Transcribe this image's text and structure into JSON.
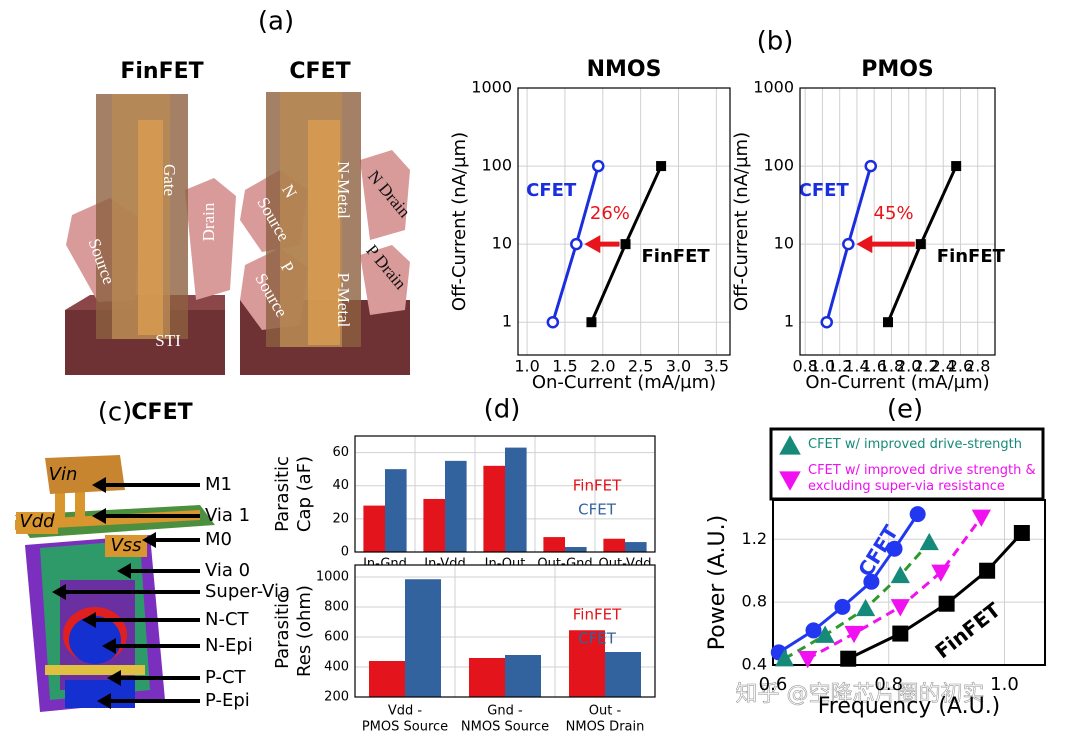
{
  "panel_labels": [
    "(a)",
    "(b)",
    "(c)",
    "(d)",
    "(e)"
  ],
  "device": {
    "finfet": {
      "title": "FinFET",
      "labels": [
        "Gate",
        "Drain",
        "Source",
        "STI"
      ]
    },
    "cfet": {
      "title": "CFET",
      "labels": [
        "N",
        "Source",
        "N-Metal",
        "N Drain",
        "P",
        "Source",
        "P-Metal",
        "P Drain"
      ]
    }
  },
  "layout": {
    "title": "CFET",
    "pins": [
      "Vin",
      "Vdd",
      "Vss"
    ],
    "layers": [
      "M1",
      "Via 1",
      "M0",
      "Via 0",
      "Super-Via",
      "N-CT",
      "N-Epi",
      "P-CT",
      "P-Epi"
    ]
  },
  "watermark": "知乎 @空降芯片圈的初实",
  "chart_data": [
    {
      "type": "line",
      "title": "NMOS",
      "xlabel": "On-Current (mA/µm)",
      "ylabel": "Off-Current (nA/µm)",
      "xlim": [
        0.88,
        3.68
      ],
      "xticks": [
        {
          "value": 1,
          "label": "1.0"
        },
        1.5,
        {
          "value": 2,
          "label": "2.0"
        },
        2.5,
        {
          "value": 3,
          "label": "3.0"
        },
        3.5
      ],
      "ylim": [
        0.38,
        1000
      ],
      "ylog": true,
      "yticks": [
        1,
        10,
        100,
        1000
      ],
      "grid": true,
      "annotation": "26%",
      "annotation_color": "#e8141b",
      "series": [
        {
          "name": "CFET",
          "color": "#1a2ee0",
          "marker": "circle-open",
          "x": [
            1.34,
            1.65,
            1.94
          ],
          "values": [
            1,
            10,
            100
          ]
        },
        {
          "name": "FinFET",
          "color": "#000000",
          "marker": "square",
          "x": [
            1.85,
            2.3,
            2.77
          ],
          "values": [
            1,
            10,
            100
          ]
        }
      ]
    },
    {
      "type": "line",
      "title": "PMOS",
      "xlabel": "On-Current (mA/µm)",
      "ylabel": "Off-Current (nA/µm)",
      "xlim": [
        0.74,
        3.0
      ],
      "xticks": [
        0.8,
        {
          "value": 1,
          "label": "1.0"
        },
        1.2,
        1.4,
        1.6,
        1.8,
        {
          "value": 2,
          "label": "2.0"
        },
        2.2,
        2.4,
        2.6,
        2.8
      ],
      "ylim": [
        0.38,
        1000
      ],
      "ylog": true,
      "yticks": [
        1,
        10,
        100,
        1000
      ],
      "grid": true,
      "annotation": "45%",
      "annotation_color": "#e8141b",
      "series": [
        {
          "name": "CFET",
          "color": "#1a2ee0",
          "marker": "circle-open",
          "x": [
            1.05,
            1.3,
            1.56
          ],
          "values": [
            1,
            10,
            100
          ]
        },
        {
          "name": "FinFET",
          "color": "#000000",
          "marker": "square",
          "x": [
            1.76,
            2.14,
            2.55
          ],
          "values": [
            1,
            10,
            100
          ]
        }
      ]
    },
    {
      "type": "bar",
      "ylabel": [
        "Parasitic",
        "Cap (aF)"
      ],
      "categories": [
        "In-Gnd",
        "In-Vdd",
        "In-Out",
        "Out-Gnd",
        "Out-Vdd"
      ],
      "ylim": [
        0,
        70
      ],
      "yticks": [
        0,
        20,
        40,
        60
      ],
      "grid": true,
      "series": [
        {
          "name": "FinFET",
          "color": "#e3141b",
          "values": [
            28,
            32,
            52,
            9,
            8
          ]
        },
        {
          "name": "CFET",
          "color": "#33639e",
          "values": [
            50,
            55,
            63,
            3,
            6
          ]
        }
      ]
    },
    {
      "type": "bar",
      "ylabel": [
        "Parasitic",
        "Res (ohm)"
      ],
      "categories": [
        [
          "Vdd -",
          "PMOS Source"
        ],
        [
          "Gnd -",
          "NMOS Source"
        ],
        [
          "Out -",
          "NMOS Drain"
        ]
      ],
      "ylim": [
        200,
        1080
      ],
      "yticks": [
        200,
        400,
        600,
        800,
        1000
      ],
      "grid": true,
      "series": [
        {
          "name": "FinFET",
          "color": "#e3141b",
          "values": [
            440,
            460,
            645
          ]
        },
        {
          "name": "CFET",
          "color": "#33639e",
          "values": [
            985,
            480,
            500
          ]
        }
      ]
    },
    {
      "type": "line",
      "xlabel": "Frequency (A.U.)",
      "ylabel": "Power (A.U.)",
      "xlim": [
        0.6,
        1.07
      ],
      "xticks": [
        0.6,
        0.8,
        {
          "value": 1,
          "label": "1.0"
        }
      ],
      "ylim": [
        0.4,
        1.45
      ],
      "yticks": [
        0.4,
        0.8,
        1.2
      ],
      "grid": true,
      "series": [
        {
          "name": "CFET",
          "color": "#2238f0",
          "marker": "circle",
          "x": [
            0.61,
            0.67,
            0.72,
            0.77,
            0.81,
            0.85
          ],
          "values": [
            0.48,
            0.62,
            0.77,
            0.93,
            1.14,
            1.36
          ]
        },
        {
          "name": "CFET w/ improved drive-strength",
          "color": "#168a7a",
          "line_color": "#2e9a2e",
          "dash": true,
          "marker": "triangle",
          "x": [
            0.62,
            0.69,
            0.76,
            0.82,
            0.87
          ],
          "values": [
            0.44,
            0.59,
            0.76,
            0.97,
            1.18
          ]
        },
        {
          "name": "CFET w/ improved drive strength & excluding super-via resistance",
          "color": "#f010f0",
          "dash": true,
          "marker": "triangle-down",
          "x": [
            0.66,
            0.74,
            0.82,
            0.89,
            0.96
          ],
          "values": [
            0.44,
            0.6,
            0.77,
            0.99,
            1.34
          ]
        },
        {
          "name": "FinFET",
          "color": "#000000",
          "marker": "square",
          "x": [
            0.73,
            0.82,
            0.9,
            0.97,
            1.03
          ],
          "values": [
            0.44,
            0.6,
            0.79,
            1.0,
            1.24
          ]
        }
      ]
    }
  ]
}
